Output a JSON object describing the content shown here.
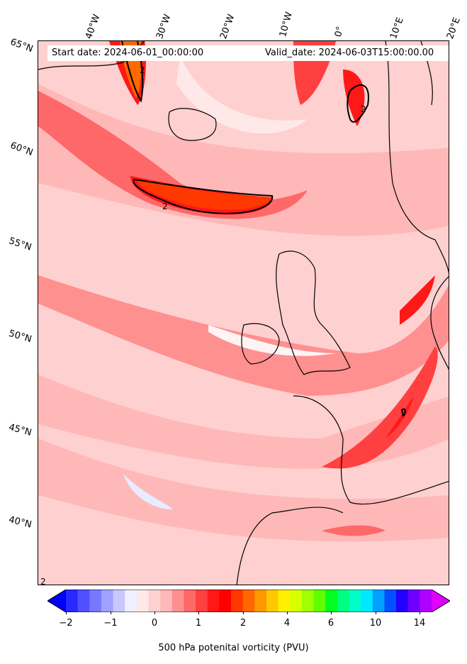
{
  "header": {
    "start_date": "Start date: 2024-06-01_00:00:00",
    "valid_date": "Valid_date: 2024-06-03T15:00:00.00"
  },
  "lon_labels": [
    "40°W",
    "30°W",
    "20°W",
    "10°W",
    "0°",
    "10°E",
    "20°E"
  ],
  "lat_labels": [
    "65°N",
    "60°N",
    "55°N",
    "50°N",
    "45°N",
    "40°N"
  ],
  "contour_labels": [
    "2",
    "2",
    "2",
    "2"
  ],
  "colorbar": {
    "label": "500 hPa potenital vorticity (PVU)",
    "ticks": [
      "−2",
      "−1",
      "0",
      "1",
      "2",
      "4",
      "6",
      "10",
      "14"
    ],
    "colors": [
      "#0000ff",
      "#2828ff",
      "#5050ff",
      "#7878ff",
      "#a0a0ff",
      "#c8c8ff",
      "#f0f0ff",
      "#ffe8e8",
      "#ffd0d0",
      "#ffb8b8",
      "#ff9090",
      "#ff6868",
      "#ff4040",
      "#ff1818",
      "#ff0000",
      "#ff3800",
      "#ff6800",
      "#ff9800",
      "#ffc800",
      "#fff000",
      "#d8ff00",
      "#a0ff00",
      "#60ff00",
      "#00ff20",
      "#00ff80",
      "#00ffc8",
      "#00e8ff",
      "#00a0ff",
      "#0050ff",
      "#2000ff",
      "#7000ff",
      "#b000ff",
      "#e000ff"
    ]
  }
}
